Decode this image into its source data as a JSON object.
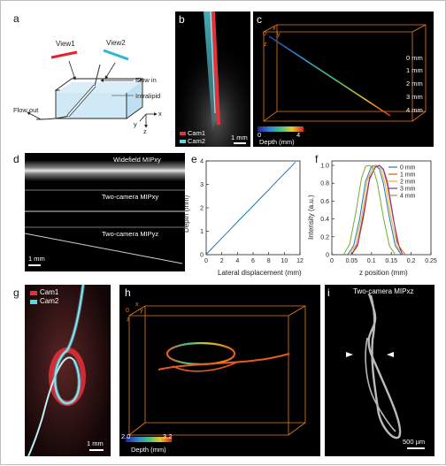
{
  "panels": {
    "a": {
      "letter": "a",
      "view1": "View1",
      "view2": "View2",
      "flow_in": "Flow in",
      "intralipid": "Intralipid",
      "flow_out": "Flow out",
      "axis_x": "x",
      "axis_y": "y",
      "axis_z": "z",
      "colors": {
        "view1": "#e8212b",
        "view2": "#29b6d9",
        "water": "#cfe9f7"
      }
    },
    "b": {
      "letter": "b",
      "cam1": "Cam1",
      "cam2": "Cam2",
      "scale": "1 mm",
      "colors": {
        "cam1": "#e8303a",
        "cam2": "#56d8e8"
      }
    },
    "c": {
      "letter": "c",
      "axis_x": "x",
      "axis_y": "y",
      "axis_z": "z",
      "origin": "0",
      "depth_ticks": [
        "0 mm",
        "1 mm",
        "2 mm",
        "3 mm",
        "4 mm"
      ],
      "colorbar_min": "0",
      "colorbar_max": "4",
      "colorbar_label": "Depth (mm)",
      "box_color": "#e87d1e"
    },
    "d": {
      "letter": "d",
      "row1": "Widefield MIPxy",
      "row2": "Two-camera MIPxy",
      "row3": "Two-camera MIPyz",
      "scale": "1 mm"
    },
    "g": {
      "letter": "g",
      "cam1": "Cam1",
      "cam2": "Cam2",
      "scale": "1 mm"
    },
    "h": {
      "letter": "h",
      "axis_x": "x",
      "axis_y": "y",
      "axis_z": "z",
      "origin": "0",
      "colorbar_min": "2.0",
      "colorbar_max": "3.2",
      "colorbar_label": "Depth (mm)"
    },
    "i": {
      "letter": "i",
      "title": "Two-camera MIPxz",
      "scale": "500 µm"
    }
  },
  "chart_data": [
    {
      "id": "e",
      "letter": "e",
      "type": "line",
      "xlabel": "Lateral displacement (mm)",
      "ylabel": "Depth (mm)",
      "xlim": [
        0,
        12
      ],
      "ylim": [
        0,
        4
      ],
      "xticks": [
        0,
        2,
        4,
        6,
        8,
        10,
        12
      ],
      "yticks": [
        0,
        1,
        2,
        3,
        4
      ],
      "series": [
        {
          "color": "#1f77b4",
          "x": [
            0,
            1,
            2,
            3,
            4,
            5,
            6,
            7,
            8,
            9,
            10,
            11,
            11.4
          ],
          "y": [
            0.02,
            0.36,
            0.71,
            1.05,
            1.4,
            1.74,
            2.08,
            2.43,
            2.77,
            3.12,
            3.46,
            3.8,
            3.95
          ]
        }
      ]
    },
    {
      "id": "f",
      "letter": "f",
      "type": "line",
      "xlabel": "z position (mm)",
      "ylabel": "Intensity (a.u.)",
      "xlim": [
        0,
        0.25
      ],
      "ylim": [
        0,
        1.05
      ],
      "xticks": [
        "0",
        "0.05",
        "0.1",
        "0.15",
        "0.2",
        "0.25"
      ],
      "yticks": [
        "0",
        "0.2",
        "0.4",
        "0.6",
        "0.8",
        "1.0"
      ],
      "legend_position": "top-right",
      "series": [
        {
          "name": "0 mm",
          "color": "#1f77b4",
          "x": [
            0.04,
            0.055,
            0.07,
            0.085,
            0.1,
            0.11,
            0.12,
            0.13,
            0.145,
            0.16,
            0.175
          ],
          "y": [
            0.0,
            0.1,
            0.4,
            0.82,
            0.99,
            1.0,
            0.96,
            0.8,
            0.42,
            0.1,
            0.0
          ]
        },
        {
          "name": "1 mm",
          "color": "#d95319",
          "x": [
            0.05,
            0.065,
            0.08,
            0.095,
            0.11,
            0.12,
            0.13,
            0.14,
            0.155,
            0.17,
            0.185
          ],
          "y": [
            0.0,
            0.1,
            0.42,
            0.84,
            0.99,
            1.0,
            0.95,
            0.78,
            0.4,
            0.09,
            0.0
          ]
        },
        {
          "name": "2 mm",
          "color": "#edb120",
          "x": [
            0.045,
            0.06,
            0.075,
            0.09,
            0.105,
            0.115,
            0.125,
            0.135,
            0.15,
            0.165,
            0.18
          ],
          "y": [
            0.0,
            0.11,
            0.42,
            0.84,
            0.99,
            1.0,
            0.95,
            0.78,
            0.4,
            0.09,
            0.0
          ]
        },
        {
          "name": "3 mm",
          "color": "#7e2f8e",
          "x": [
            0.05,
            0.065,
            0.08,
            0.095,
            0.11,
            0.12,
            0.13,
            0.14,
            0.15,
            0.165,
            0.178
          ],
          "y": [
            0.0,
            0.12,
            0.46,
            0.86,
            0.98,
            1.0,
            0.96,
            0.82,
            0.55,
            0.15,
            0.0
          ]
        },
        {
          "name": "4 mm",
          "color": "#77ac30",
          "x": [
            0.03,
            0.045,
            0.06,
            0.075,
            0.085,
            0.095,
            0.105,
            0.115,
            0.13,
            0.145,
            0.16
          ],
          "y": [
            0.0,
            0.12,
            0.46,
            0.86,
            0.99,
            1.0,
            0.96,
            0.8,
            0.42,
            0.1,
            0.0
          ]
        }
      ]
    }
  ]
}
